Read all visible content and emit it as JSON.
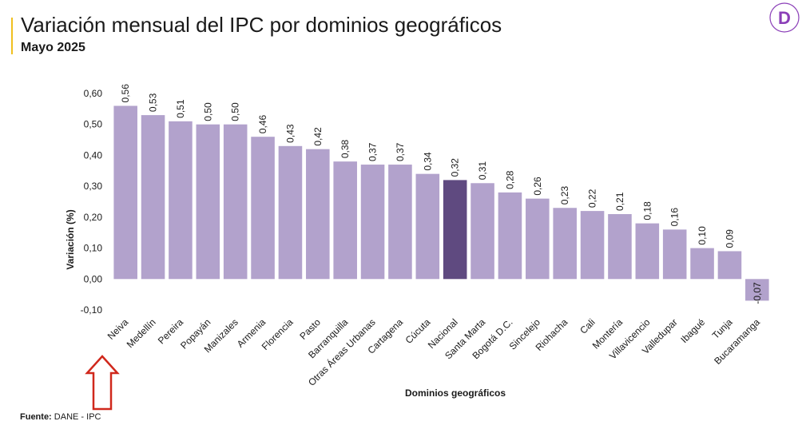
{
  "header": {
    "title": "Variación mensual del IPC por dominios geográficos",
    "subtitle": "Mayo 2025",
    "accent_color": "#f0c020",
    "logo_icon": "d-logo-icon",
    "logo_letter": "D",
    "logo_color": "#8b3fb8"
  },
  "footer": {
    "source_label": "Fuente:",
    "source_value": "DANE - IPC"
  },
  "annotation": {
    "icon": "up-arrow-icon",
    "color": "#d0281c"
  },
  "chart_data": {
    "type": "bar",
    "title": "",
    "xlabel": "Dominios geográficos",
    "ylabel": "Variación (%)",
    "ylim": [
      -0.1,
      0.6
    ],
    "yticks": [
      "-0,10",
      "0,00",
      "0,10",
      "0,20",
      "0,30",
      "0,40",
      "0,50",
      "0,60"
    ],
    "ytick_values": [
      -0.1,
      0,
      0.1,
      0.2,
      0.3,
      0.4,
      0.5,
      0.6
    ],
    "grid": false,
    "bar_color": "#b2a2cc",
    "highlight_color": "#5f4a80",
    "highlight_category": "Nacional",
    "categories": [
      "Neiva",
      "Medellín",
      "Pereira",
      "Popayán",
      "Manizales",
      "Armenia",
      "Florencia",
      "Pasto",
      "Barranquilla",
      "Otras Áreas Urbanas",
      "Cartagena",
      "Cúcuta",
      "Nacional",
      "Santa Marta",
      "Bogotá D.C.",
      "Sincelejo",
      "Riohacha",
      "Cali",
      "Montería",
      "Villavicencio",
      "Valledupar",
      "Ibagué",
      "Tunja",
      "Bucaramanga"
    ],
    "values": [
      0.56,
      0.53,
      0.51,
      0.5,
      0.5,
      0.46,
      0.43,
      0.42,
      0.38,
      0.37,
      0.37,
      0.34,
      0.32,
      0.31,
      0.28,
      0.26,
      0.23,
      0.22,
      0.21,
      0.18,
      0.16,
      0.1,
      0.09,
      -0.07
    ],
    "value_labels": [
      "0,56",
      "0,53",
      "0,51",
      "0,50",
      "0,50",
      "0,46",
      "0,43",
      "0,42",
      "0,38",
      "0,37",
      "0,37",
      "0,34",
      "0,32",
      "0,31",
      "0,28",
      "0,26",
      "0,23",
      "0,22",
      "0,21",
      "0,18",
      "0,16",
      "0,10",
      "0,09",
      "-0,07"
    ]
  }
}
